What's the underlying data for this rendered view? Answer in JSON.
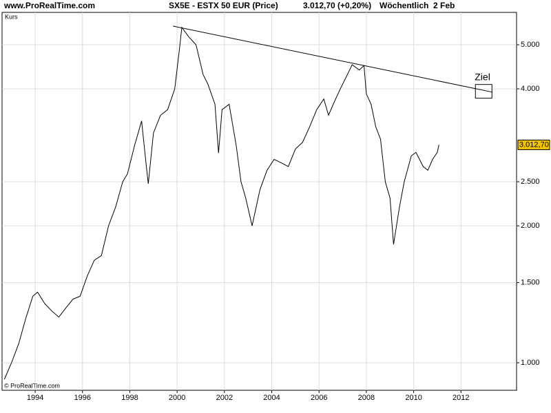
{
  "chart_data": {
    "type": "line",
    "site": "www.ProRealTime.com",
    "title": "SX5E - ESTX 50 EUR (Price)",
    "price_change": "3.012,70 (+0,20%)",
    "period": "Wöchentlich  2 Feb",
    "y_label": "Kurs",
    "footer": "© ProRealTime.com",
    "ylog": true,
    "grid": true,
    "xlim": [
      1992.6,
      2014.35
    ],
    "xticks": [
      1994,
      1996,
      1998,
      2000,
      2002,
      2004,
      2006,
      2008,
      2010,
      2012
    ],
    "ylim": [
      870,
      5890
    ],
    "yticks": [
      {
        "value": 1000,
        "label": "1.000"
      },
      {
        "value": 1500,
        "label": "1.500"
      },
      {
        "value": 2000,
        "label": "2.000"
      },
      {
        "value": 2500,
        "label": "2.500"
      },
      {
        "value": 4000,
        "label": "4.000"
      },
      {
        "value": 5000,
        "label": "5.000"
      }
    ],
    "series": [
      {
        "color": "#000000",
        "x": [
          1992.7,
          1993.0,
          1993.3,
          1993.6,
          1993.9,
          1994.1,
          1994.4,
          1994.7,
          1995.0,
          1995.3,
          1995.6,
          1995.9,
          1996.2,
          1996.5,
          1996.8,
          1997.1,
          1997.4,
          1997.7,
          1997.9,
          1998.2,
          1998.5,
          1998.7,
          1998.78,
          1999.0,
          1999.3,
          1999.6,
          1999.9,
          2000.1,
          2000.2,
          2000.5,
          2000.8,
          2001.1,
          2001.3,
          2001.6,
          2001.75,
          2001.9,
          2002.2,
          2002.5,
          2002.7,
          2002.9,
          2003.17,
          2003.5,
          2003.8,
          2004.1,
          2004.4,
          2004.7,
          2005.0,
          2005.3,
          2005.6,
          2005.9,
          2006.2,
          2006.4,
          2006.6,
          2006.9,
          2007.2,
          2007.4,
          2007.7,
          2007.9,
          2008.0,
          2008.2,
          2008.4,
          2008.6,
          2008.8,
          2009.0,
          2009.15,
          2009.4,
          2009.6,
          2009.9,
          2010.1,
          2010.4,
          2010.6,
          2010.8,
          2011.0,
          2011.07
        ],
        "values": [
          920,
          1000,
          1100,
          1250,
          1400,
          1430,
          1350,
          1300,
          1260,
          1320,
          1380,
          1400,
          1550,
          1680,
          1720,
          2000,
          2200,
          2500,
          2600,
          3000,
          3400,
          2700,
          2475,
          3200,
          3500,
          3600,
          4000,
          4900,
          5460,
          5200,
          5000,
          4300,
          4100,
          3700,
          2890,
          3600,
          3700,
          3000,
          2500,
          2300,
          2000,
          2400,
          2650,
          2800,
          2750,
          2700,
          2950,
          3050,
          3300,
          3600,
          3800,
          3500,
          3700,
          4000,
          4300,
          4520,
          4400,
          4500,
          3900,
          3700,
          3300,
          3100,
          2500,
          2300,
          1820,
          2200,
          2500,
          2850,
          2900,
          2700,
          2650,
          2800,
          2900,
          3012.7
        ]
      }
    ],
    "last_price": {
      "value": 3012.7,
      "label": "3.012,70"
    },
    "trendline": {
      "x": [
        1999.83,
        2013.34
      ],
      "values": [
        5495,
        3933
      ]
    },
    "target": {
      "label": "Ziel",
      "x": 2012.96,
      "value": 3950
    }
  }
}
